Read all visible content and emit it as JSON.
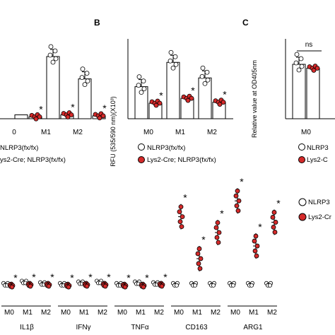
{
  "colors": {
    "red": "#d42a2a",
    "white": "#ffffff",
    "axis": "#000000",
    "ns_label": "#000000"
  },
  "panel_letters": {
    "b": "B",
    "c": "C"
  },
  "legend": {
    "wt": "NLRP3(fx/fx)",
    "ko": "Lys2-Cre; NLRP3(fx/fx)",
    "a_wt": "NLRP3(fx/fx)",
    "a_ko": "ys2-Cre; NLRP3(fx/fx)",
    "c_wt": "NLRP3",
    "c_ko": "Lys2-C",
    "d_wt": "NLRP3",
    "d_ko": "Lys2-Cr"
  },
  "significance": {
    "ns": "ns",
    "star": "*"
  },
  "chart_data": [
    {
      "id": "panel-a",
      "type": "bar",
      "categories": [
        "M0",
        "M1",
        "M2"
      ],
      "tick_labels": [
        "0",
        "M1",
        "M2"
      ],
      "series": [
        {
          "name": "NLRP3(fx/fx)",
          "values": [
            0.2,
            3.2,
            2.05
          ]
        },
        {
          "name": "Lys2-Cre; NLRP3(fx/fx)",
          "values": [
            0.1,
            0.2,
            0.15
          ]
        }
      ],
      "ylim": [
        0,
        4
      ]
    },
    {
      "id": "panel-b",
      "type": "bar",
      "title": "B",
      "categories": [
        "M0",
        "M1",
        "M2"
      ],
      "ylabel": "RFU (535/590 nm)(X10³)",
      "series": [
        {
          "name": "NLRP3(fx/fx)",
          "values": [
            1.65,
            2.9,
            2.1
          ]
        },
        {
          "name": "Lys2-Cre; NLRP3(fx/fx)",
          "values": [
            0.8,
            1.05,
            0.85
          ]
        }
      ],
      "ylim": [
        0,
        4
      ]
    },
    {
      "id": "panel-c",
      "type": "bar",
      "title": "C",
      "categories": [
        "M0"
      ],
      "ylabel": "Relative value at OD405nm",
      "series": [
        {
          "name": "NLRP3(fx/fx)",
          "values": [
            2.8
          ]
        },
        {
          "name": "Lys2-Cre; NLRP3(fx/fx)",
          "values": [
            2.6
          ]
        }
      ],
      "ylim": [
        0,
        4
      ]
    },
    {
      "id": "panel-d",
      "type": "scatter",
      "categories": [
        "IL1β",
        "IFNγ",
        "TNFα",
        "CD163",
        "ARG1"
      ],
      "conditions": [
        "M0",
        "M1",
        "M2"
      ],
      "tick_labels": [
        "M0",
        "M1",
        "M2"
      ],
      "series": [
        {
          "name": "NLRP3(fx/fx)",
          "values": [
            [
              1,
              1.3,
              1.1
            ],
            [
              1,
              1.2,
              1.3
            ],
            [
              1,
              1.2,
              1.1
            ],
            [
              1,
              1,
              1
            ],
            [
              1,
              1,
              1
            ]
          ]
        },
        {
          "name": "Lys2-Cre; NLRP3(fx/fx)",
          "values": [
            [
              0.8,
              0.9,
              0.9
            ],
            [
              0.8,
              0.9,
              0.9
            ],
            [
              0.8,
              0.8,
              0.9
            ],
            [
              9.5,
              4.2,
              7.5
            ],
            [
              11.5,
              5.8,
              8.8
            ]
          ]
        }
      ],
      "ylim": [
        0,
        16
      ]
    }
  ]
}
